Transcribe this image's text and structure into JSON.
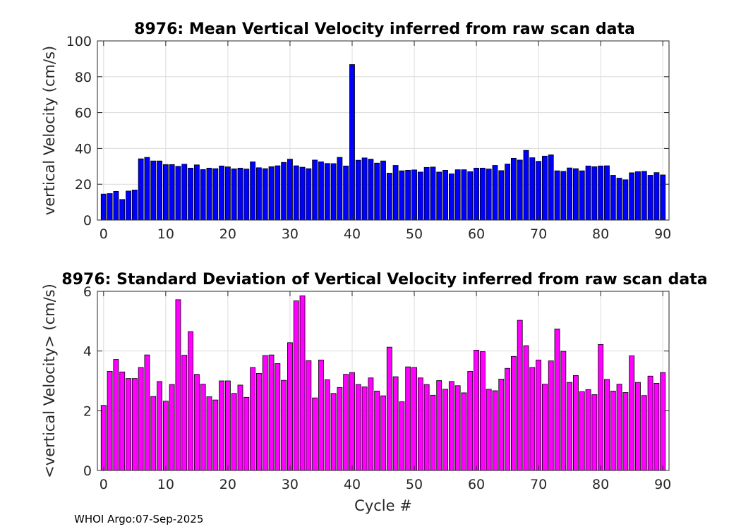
{
  "footer": "WHOI Argo:07-Sep-2025",
  "chart_data": [
    {
      "type": "bar",
      "title": "8976: Mean Vertical Velocity inferred from raw scan data",
      "xlabel": "",
      "ylabel": "vertical Velocity (cm/s)",
      "xlim": [
        -1,
        91
      ],
      "ylim": [
        0,
        100
      ],
      "xticks": [
        0,
        10,
        20,
        30,
        40,
        50,
        60,
        70,
        80,
        90
      ],
      "yticks": [
        0,
        20,
        40,
        60,
        80,
        100
      ],
      "grid": true,
      "color": "#0000ff",
      "x": [
        0,
        1,
        2,
        3,
        4,
        5,
        6,
        7,
        8,
        9,
        10,
        11,
        12,
        13,
        14,
        15,
        16,
        17,
        18,
        19,
        20,
        21,
        22,
        23,
        24,
        25,
        26,
        27,
        28,
        29,
        30,
        31,
        32,
        33,
        34,
        35,
        36,
        37,
        38,
        39,
        40,
        41,
        42,
        43,
        44,
        45,
        46,
        47,
        48,
        49,
        50,
        51,
        52,
        53,
        54,
        55,
        56,
        57,
        58,
        59,
        60,
        61,
        62,
        63,
        64,
        65,
        66,
        67,
        68,
        69,
        70,
        71,
        72,
        73,
        74,
        75,
        76,
        77,
        78,
        79,
        80,
        81,
        82,
        83,
        84,
        85,
        86,
        87,
        88,
        89,
        90
      ],
      "values": [
        14.5,
        14.8,
        16,
        11.5,
        16.2,
        16.8,
        34.2,
        35,
        33,
        33,
        31,
        31,
        30,
        31.2,
        29,
        30.8,
        28.2,
        29,
        28.7,
        30.2,
        29.7,
        28.6,
        29,
        28.5,
        32.5,
        29.2,
        28.7,
        29.8,
        30.3,
        32.2,
        34,
        30.3,
        29.5,
        28.7,
        33.5,
        32.5,
        31.6,
        31.5,
        35,
        30.2,
        86.8,
        33.4,
        34.7,
        34,
        31.8,
        33,
        26.2,
        30.5,
        27.5,
        27.8,
        28,
        26.8,
        29.4,
        29.6,
        26.8,
        27.8,
        25.8,
        28.1,
        28.1,
        27,
        29,
        29,
        28.5,
        30.5,
        27.6,
        31.3,
        34.5,
        33.5,
        38.9,
        34.8,
        32.8,
        35.7,
        36.4,
        27.5,
        27.2,
        29.1,
        28.7,
        27.5,
        30.2,
        29.8,
        30.2,
        30.3,
        25,
        23.4,
        22.5,
        26.4,
        27,
        27.2,
        25,
        26.5,
        25.2
      ]
    },
    {
      "type": "bar",
      "title": "8976: Standard Deviation of Vertical Velocity inferred from raw scan data",
      "xlabel": "Cycle #",
      "ylabel": "<vertical Velocity> (cm/s)",
      "xlim": [
        -1,
        91
      ],
      "ylim": [
        0,
        6
      ],
      "xticks": [
        0,
        10,
        20,
        30,
        40,
        50,
        60,
        70,
        80,
        90
      ],
      "yticks": [
        0,
        2,
        4,
        6
      ],
      "grid": true,
      "color": "#ff00ff",
      "x": [
        0,
        1,
        2,
        3,
        4,
        5,
        6,
        7,
        8,
        9,
        10,
        11,
        12,
        13,
        14,
        15,
        16,
        17,
        18,
        19,
        20,
        21,
        22,
        23,
        24,
        25,
        26,
        27,
        28,
        29,
        30,
        31,
        32,
        33,
        34,
        35,
        36,
        37,
        38,
        39,
        40,
        41,
        42,
        43,
        44,
        45,
        46,
        47,
        48,
        49,
        50,
        51,
        52,
        53,
        54,
        55,
        56,
        57,
        58,
        59,
        60,
        61,
        62,
        63,
        64,
        65,
        66,
        67,
        68,
        69,
        70,
        71,
        72,
        73,
        74,
        75,
        76,
        77,
        78,
        79,
        80,
        81,
        82,
        83,
        84,
        85,
        86,
        87,
        88,
        89,
        90
      ],
      "values": [
        2.18,
        3.32,
        3.72,
        3.3,
        3.08,
        3.08,
        3.45,
        3.87,
        2.48,
        2.98,
        2.32,
        2.88,
        5.72,
        3.86,
        4.65,
        3.22,
        2.89,
        2.47,
        2.36,
        3,
        3,
        2.58,
        2.86,
        2.45,
        3.45,
        3.25,
        3.85,
        3.87,
        3.58,
        3.02,
        4.28,
        5.68,
        5.85,
        3.68,
        2.43,
        3.7,
        3.04,
        2.58,
        2.78,
        3.22,
        3.28,
        2.88,
        2.8,
        3.1,
        2.66,
        2.5,
        4.13,
        3.14,
        2.3,
        3.47,
        3.45,
        3.1,
        2.88,
        2.52,
        3.01,
        2.72,
        2.98,
        2.84,
        2.6,
        3.32,
        4.03,
        3.98,
        2.72,
        2.67,
        3.06,
        3.42,
        3.82,
        5.03,
        4.18,
        3.45,
        3.7,
        2.89,
        3.67,
        4.74,
        3.99,
        2.95,
        3.18,
        2.64,
        2.71,
        2.54,
        4.22,
        3.05,
        2.66,
        2.89,
        2.61,
        3.84,
        2.95,
        2.51,
        3.16,
        2.92,
        3.28
      ]
    }
  ]
}
